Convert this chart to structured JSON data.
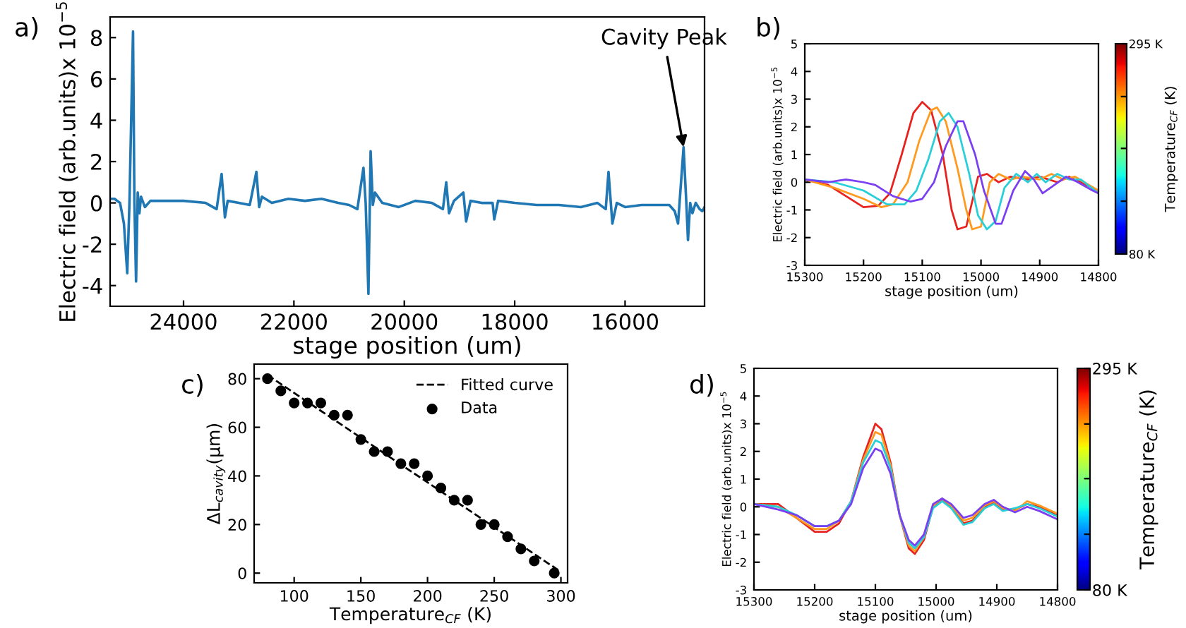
{
  "chart_data": [
    {
      "type": "line",
      "xlabel": "stage position (um)",
      "ylabel": "Electric field (arb.units)x 10$^{−5}$",
      "xlim": [
        25330,
        14560
      ],
      "xticks": [
        24000,
        22000,
        20000,
        18000,
        16000
      ],
      "ylim": [
        -5,
        9
      ],
      "yticks": [
        -4,
        -2,
        0,
        2,
        4,
        6,
        8
      ],
      "grid": false,
      "legend": false,
      "annotations": [
        "a)",
        {
          "text": "Cavity Peak",
          "x": 14940,
          "y": 2.7
        }
      ],
      "series": [
        {
          "color": "#1f77b4",
          "x": [
            25330,
            25250,
            25150,
            25080,
            25020,
            24980,
            24915,
            24890,
            24860,
            24830,
            24800,
            24770,
            24700,
            24600,
            24300,
            24000,
            23600,
            23400,
            23310,
            23250,
            23200,
            23000,
            22800,
            22680,
            22630,
            22580,
            22400,
            22100,
            21800,
            21500,
            21200,
            21000,
            20850,
            20740,
            20700,
            20650,
            20610,
            20570,
            20530,
            20400,
            20100,
            19800,
            19500,
            19300,
            19240,
            19190,
            19100,
            18930,
            18880,
            18800,
            18600,
            18400,
            18370,
            18300,
            18000,
            17600,
            17200,
            16800,
            16500,
            16350,
            16300,
            16230,
            16150,
            16000,
            15700,
            15400,
            15200,
            15100,
            15040,
            14940,
            14890,
            14860,
            14820,
            14780,
            14720,
            14650,
            14600,
            14560
          ],
          "values": [
            0.2,
            0.2,
            0.0,
            -1.0,
            -3.4,
            0.0,
            8.3,
            0.0,
            -3.8,
            0.5,
            -0.5,
            0.3,
            -0.2,
            0.1,
            0.1,
            0.1,
            0.0,
            -0.3,
            1.4,
            -0.7,
            0.1,
            0.0,
            -0.1,
            1.5,
            -0.2,
            0.3,
            0.0,
            0.2,
            0.1,
            0.2,
            0.0,
            -0.1,
            -0.3,
            1.7,
            0.0,
            -4.4,
            2.5,
            -0.1,
            0.5,
            0.0,
            -0.2,
            0.1,
            0.0,
            -0.3,
            1.0,
            -0.5,
            0.1,
            0.5,
            -0.9,
            0.1,
            0.0,
            0.0,
            -0.8,
            0.1,
            0.0,
            -0.1,
            -0.1,
            -0.2,
            0.0,
            -0.3,
            1.5,
            -1.0,
            0.0,
            -0.2,
            -0.1,
            -0.1,
            -0.1,
            -0.4,
            -1.0,
            2.7,
            0.0,
            -1.8,
            0.0,
            -0.5,
            0.0,
            -0.3,
            -0.4,
            -0.2
          ]
        }
      ]
    },
    {
      "type": "line",
      "xlabel": "stage position (um)",
      "ylabel": "Electric field (arb.units)x 10$^{−5}$",
      "xlim": [
        15300,
        14800
      ],
      "xticks": [
        15300,
        15200,
        15100,
        15000,
        14900,
        14800
      ],
      "ylim": [
        -3,
        5
      ],
      "yticks": [
        -3,
        -2,
        -1,
        0,
        1,
        2,
        3,
        4,
        5
      ],
      "grid": false,
      "legend": false,
      "clabel": "Temperature$_{CF}$ (K)",
      "clim": [
        80,
        295
      ],
      "cticks": [
        {
          "value": 80,
          "label": "80 K"
        },
        {
          "value": 134,
          "label": null
        },
        {
          "value": 188,
          "label": null
        },
        {
          "value": 241,
          "label": null
        },
        {
          "value": 295,
          "label": "295 K"
        }
      ],
      "annotations": [
        "b)"
      ],
      "series": [
        {
          "color": "#e8231e",
          "x": [
            15300,
            15260,
            15230,
            15200,
            15175,
            15155,
            15135,
            15115,
            15100,
            15085,
            15065,
            15050,
            15040,
            15025,
            15005,
            14990,
            14970,
            14950,
            14920,
            14900,
            14870,
            14850,
            14820,
            14800
          ],
          "values": [
            0.1,
            -0.1,
            -0.5,
            -0.9,
            -0.85,
            -0.4,
            1.0,
            2.5,
            2.9,
            2.6,
            1.0,
            -1.0,
            -1.7,
            -1.6,
            0.2,
            0.3,
            0.0,
            0.2,
            0.1,
            0.2,
            0.0,
            0.2,
            -0.1,
            -0.3
          ]
        },
        {
          "color": "#ff9a1f",
          "x": [
            15300,
            15250,
            15200,
            15170,
            15150,
            15125,
            15105,
            15085,
            15075,
            15060,
            15040,
            15025,
            15015,
            15000,
            14985,
            14970,
            14950,
            14930,
            14900,
            14880,
            14860,
            14840,
            14800
          ],
          "values": [
            0.1,
            -0.2,
            -0.6,
            -0.9,
            -0.8,
            0.0,
            1.5,
            2.6,
            2.7,
            2.2,
            0.5,
            -1.0,
            -1.7,
            -1.6,
            0.0,
            0.3,
            0.1,
            0.2,
            0.1,
            0.3,
            0.1,
            0.2,
            -0.3
          ]
        },
        {
          "color": "#27d0d8",
          "x": [
            15300,
            15250,
            15200,
            15160,
            15130,
            15110,
            15090,
            15070,
            15055,
            15040,
            15020,
            15005,
            14990,
            14975,
            14960,
            14940,
            14920,
            14905,
            14890,
            14870,
            14850,
            14830,
            14800
          ],
          "values": [
            0.1,
            0.0,
            -0.3,
            -0.8,
            -0.8,
            -0.3,
            0.8,
            2.2,
            2.5,
            2.0,
            0.3,
            -1.2,
            -1.7,
            -1.4,
            -0.2,
            0.3,
            0.0,
            0.3,
            0.0,
            0.3,
            0.1,
            0.1,
            -0.4
          ]
        },
        {
          "color": "#7b3ff2",
          "x": [
            15300,
            15260,
            15230,
            15200,
            15180,
            15150,
            15120,
            15100,
            15080,
            15060,
            15040,
            15030,
            15010,
            14995,
            14975,
            14965,
            14945,
            14925,
            14910,
            14895,
            14875,
            14855,
            14835,
            14810,
            14800
          ],
          "values": [
            0.1,
            0.0,
            0.1,
            0.0,
            -0.1,
            -0.5,
            -0.7,
            -0.6,
            0.0,
            1.3,
            2.2,
            2.2,
            1.0,
            -0.3,
            -1.5,
            -1.5,
            -0.3,
            0.4,
            0.1,
            -0.4,
            -0.1,
            0.2,
            0.0,
            -0.3,
            -0.4
          ]
        }
      ]
    },
    {
      "type": "line",
      "xlabel": "Temperature$_{CF}$ (K)",
      "ylabel": "ΔL$_{cavity}$(μm)",
      "xlim": [
        70,
        305
      ],
      "xticks": [
        100,
        150,
        200,
        250,
        300
      ],
      "ylim": [
        -4,
        86
      ],
      "yticks": [
        0,
        20,
        40,
        60,
        80
      ],
      "grid": false,
      "legend": "top right",
      "annotations": [
        "c)"
      ],
      "series": [
        {
          "name": "Fitted curve",
          "type": "line",
          "line_style": "dashed",
          "marker": "none",
          "color": "#000000",
          "x": [
            80,
            300
          ],
          "values": [
            81.5,
            0.5
          ]
        },
        {
          "name": "Data",
          "type": "scatter",
          "marker": "circle",
          "color": "#000000",
          "x": [
            80,
            90,
            100,
            110,
            120,
            130,
            140,
            150,
            160,
            170,
            180,
            190,
            200,
            210,
            220,
            230,
            240,
            250,
            260,
            270,
            280,
            295
          ],
          "values": [
            80,
            75,
            70,
            70,
            70,
            65,
            65,
            55,
            50,
            50,
            45,
            45,
            40,
            35,
            30,
            30,
            20,
            20,
            15,
            10,
            5,
            0
          ]
        }
      ]
    },
    {
      "type": "line",
      "xlabel": "stage position (um)",
      "ylabel": "Electric field (arb.units)x 10$^{−5}$",
      "xlim": [
        15300,
        14800
      ],
      "xticks": [
        15300,
        15200,
        15100,
        15000,
        14900,
        14800
      ],
      "ylim": [
        -3,
        5
      ],
      "yticks": [
        -3,
        -2,
        -1,
        0,
        1,
        2,
        3,
        4,
        5
      ],
      "grid": false,
      "legend": false,
      "clabel": "Temperature$_{CF}$ (K)",
      "clim": [
        80,
        295
      ],
      "cticks": [
        {
          "value": 80,
          "label": "80 K"
        },
        {
          "value": 134,
          "label": null
        },
        {
          "value": 188,
          "label": null
        },
        {
          "value": 241,
          "label": null
        },
        {
          "value": 295,
          "label": "295 K"
        }
      ],
      "annotations": [
        "d)"
      ],
      "series": [
        {
          "color": "#e8231e",
          "x": [
            15300,
            15260,
            15230,
            15200,
            15180,
            15160,
            15140,
            15120,
            15100,
            15090,
            15075,
            15060,
            15045,
            15035,
            15020,
            15005,
            14990,
            14975,
            14955,
            14940,
            14920,
            14905,
            14890,
            14870,
            14850,
            14830,
            14800
          ],
          "values": [
            0.1,
            0.1,
            -0.4,
            -0.9,
            -0.9,
            -0.6,
            0.2,
            1.8,
            3.0,
            2.8,
            1.6,
            -0.3,
            -1.5,
            -1.7,
            -1.2,
            0.0,
            0.25,
            0.0,
            -0.6,
            -0.5,
            0.0,
            0.15,
            -0.1,
            -0.1,
            0.1,
            0.0,
            -0.3
          ]
        },
        {
          "color": "#ff9a1f",
          "x": [
            15300,
            15260,
            15230,
            15200,
            15180,
            15160,
            15140,
            15120,
            15100,
            15090,
            15075,
            15060,
            15045,
            15035,
            15020,
            15005,
            14990,
            14975,
            14955,
            14940,
            14920,
            14905,
            14890,
            14870,
            14850,
            14830,
            14800
          ],
          "values": [
            0.1,
            0.0,
            -0.4,
            -0.8,
            -0.8,
            -0.5,
            0.2,
            1.7,
            2.7,
            2.6,
            1.5,
            -0.3,
            -1.4,
            -1.6,
            -1.1,
            0.05,
            0.3,
            0.05,
            -0.5,
            -0.4,
            0.05,
            0.2,
            -0.05,
            -0.15,
            0.2,
            0.05,
            -0.25
          ]
        },
        {
          "color": "#27d0d8",
          "x": [
            15300,
            15260,
            15230,
            15200,
            15180,
            15160,
            15140,
            15120,
            15100,
            15090,
            15075,
            15060,
            15045,
            15035,
            15020,
            15005,
            14990,
            14975,
            14955,
            14940,
            14920,
            14905,
            14890,
            14870,
            14850,
            14830,
            14800
          ],
          "values": [
            0.1,
            0.0,
            -0.3,
            -0.7,
            -0.7,
            -0.5,
            0.2,
            1.6,
            2.4,
            2.3,
            1.4,
            -0.3,
            -1.3,
            -1.5,
            -1.1,
            -0.05,
            0.2,
            -0.05,
            -0.65,
            -0.55,
            -0.05,
            0.1,
            -0.15,
            -0.05,
            0.1,
            -0.05,
            -0.35
          ]
        },
        {
          "color": "#7b3ff2",
          "x": [
            15300,
            15260,
            15230,
            15200,
            15180,
            15160,
            15140,
            15120,
            15100,
            15090,
            15075,
            15060,
            15045,
            15035,
            15020,
            15005,
            14990,
            14975,
            14955,
            14940,
            14920,
            14905,
            14890,
            14870,
            14850,
            14830,
            14800
          ],
          "values": [
            0.1,
            -0.1,
            -0.3,
            -0.7,
            -0.7,
            -0.5,
            0.1,
            1.4,
            2.1,
            2.0,
            1.2,
            -0.3,
            -1.2,
            -1.4,
            -1.0,
            0.1,
            0.3,
            0.1,
            -0.4,
            -0.3,
            0.1,
            0.25,
            0.0,
            -0.2,
            0.0,
            -0.15,
            -0.45
          ]
        }
      ]
    }
  ]
}
